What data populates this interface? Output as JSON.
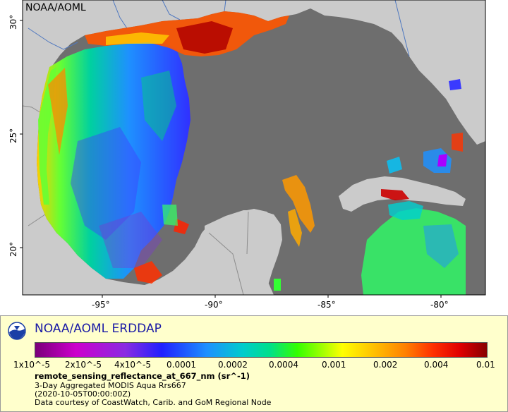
{
  "map": {
    "corner_label": "NOAA/AOML",
    "lat_labels": [
      "30°",
      "25°",
      "20°"
    ],
    "lon_labels": [
      "-95°",
      "-90°",
      "-85°",
      "-80°"
    ],
    "colors": {
      "land": "#cbcbcb",
      "water_nodata": "#6e6e6e",
      "border": "#8c8c8c",
      "rivers": "#4f78c0"
    }
  },
  "legend": {
    "brand": "NOAA/AOML ERDDAP",
    "logo_icon": "noaa-logo-icon",
    "colorbar_labels": [
      "1x10^-5",
      "2x10^-5",
      "4x10^-5",
      "0.0001",
      "0.0002",
      "0.0004",
      "0.001",
      "0.002",
      "0.004",
      "0.01"
    ],
    "variable": "remote_sensing_reflectance_at_667_nm (sr^-1)",
    "line1": "3-Day Aggregated MODIS Aqua Rrs667",
    "line2": "(2020-10-05T00:00:00Z)",
    "line3": "Data courtesy of CoastWatch, Carib. and GoM Regional Node"
  }
}
